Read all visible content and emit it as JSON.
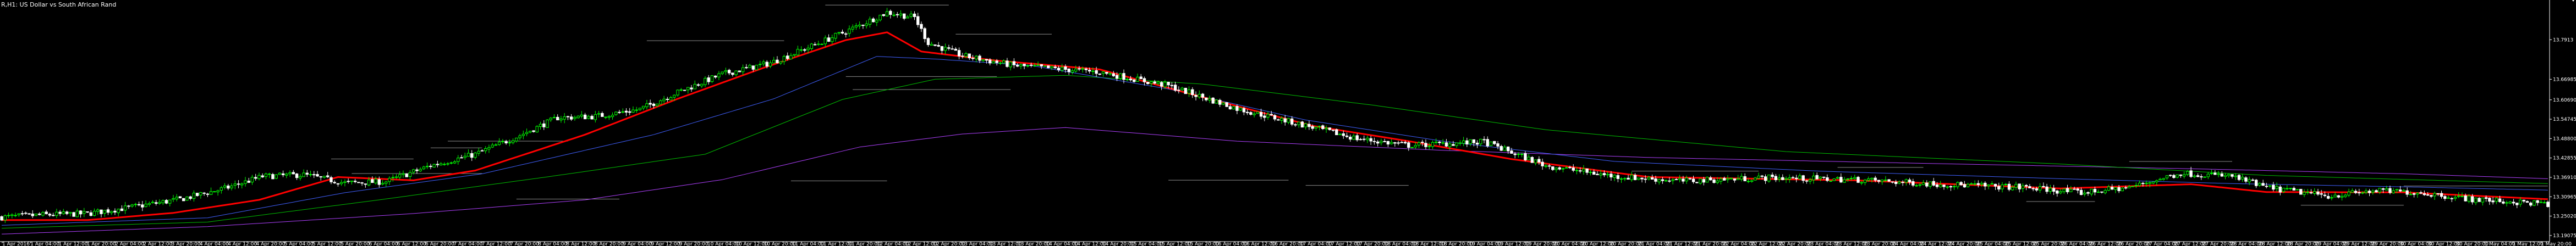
{
  "window": {
    "title": "R,H1:  US Dollar vs South African Rand"
  },
  "colors": {
    "background": "#000000",
    "foreground": "#ffffff",
    "bull_candle": "#00ff00",
    "bear_candle": "#ffffff",
    "ma_fast": "#ff0000",
    "ma_blue": "#4060ff",
    "ma_green": "#00c000",
    "ma_purple": "#b040ff",
    "sr_line": "#8c8c8c"
  },
  "icons": {
    "resize_grip": "resize-grip-icon"
  },
  "chart_data": {
    "type": "candlestick",
    "title": "R,H1:  US Dollar vs South African Rand",
    "ylim": [
      13.172,
      13.913
    ],
    "y_ticks": [
      "13.7913",
      "13.66985",
      "13.60690",
      "13.54745",
      "13.48800",
      "13.42855",
      "13.36910",
      "13.30965",
      "13.25020",
      "13.19075"
    ],
    "y_tick_values": [
      13.7913,
      13.66985,
      13.6069,
      13.54745,
      13.488,
      13.42855,
      13.3691,
      13.30965,
      13.2502,
      13.19075
    ],
    "x_ticks": [
      "1 Apr 2016",
      "1 Apr 04:00",
      "1 Apr 12:00",
      "1 Apr 20:00",
      "2 Apr 04:00",
      "2 Apr 12:00",
      "3 Apr 20:00",
      "4 Apr 04:00",
      "4 Apr 12:00",
      "4 Apr 20:00",
      "5 Apr 04:00",
      "5 Apr 12:00",
      "5 Apr 20:00",
      "6 Apr 04:00",
      "6 Apr 12:00",
      "6 Apr 20:00",
      "7 Apr 04:00",
      "7 Apr 12:00",
      "7 Apr 20:00",
      "8 Apr 04:00",
      "8 Apr 12:00",
      "8 Apr 20:00",
      "9 Apr 04:00",
      "9 Apr 12:00",
      "9 Apr 20:00",
      "10 Apr 04:00",
      "10 Apr 12:00",
      "10 Apr 20:00",
      "11 Apr 04:00",
      "11 Apr 12:00",
      "11 Apr 20:00",
      "12 Apr 04:00",
      "12 Apr 12:00",
      "12 Apr 20:00",
      "13 Apr 04:00",
      "13 Apr 12:00",
      "13 Apr 20:00",
      "14 Apr 04:00",
      "14 Apr 12:00",
      "14 Apr 20:00",
      "15 Apr 04:00",
      "15 Apr 12:00",
      "15 Apr 20:00",
      "16 Apr 04:00",
      "16 Apr 12:00",
      "16 Apr 20:00",
      "17 Apr 04:00",
      "17 Apr 12:00",
      "17 Apr 20:00",
      "18 Apr 04:00",
      "18 Apr 12:00",
      "18 Apr 20:00",
      "19 Apr 04:00",
      "19 Apr 12:00",
      "19 Apr 20:00",
      "20 Apr 04:00",
      "20 Apr 12:00",
      "20 Apr 20:00",
      "21 Apr 04:00",
      "21 Apr 12:00",
      "21 Apr 20:00",
      "22 Apr 04:00",
      "22 Apr 12:00",
      "22 Apr 20:00",
      "23 Apr 04:00",
      "23 Apr 12:00",
      "23 Apr 20:00",
      "24 Apr 04:00",
      "24 Apr 12:00",
      "24 Apr 20:00",
      "25 Apr 04:00",
      "25 Apr 12:00",
      "25 Apr 20:00",
      "26 Apr 04:00",
      "26 Apr 12:00",
      "26 Apr 20:00",
      "27 Apr 04:00",
      "27 Apr 12:00",
      "27 Apr 20:00",
      "28 Apr 04:00",
      "28 Apr 12:00",
      "28 Apr 20:00",
      "29 Apr 04:00",
      "29 Apr 12:00",
      "29 Apr 20:00",
      "30 Apr 04:00",
      "30 Apr 12:00",
      "30 Apr 20:00",
      "1 May 04:00",
      "1 May 12:00",
      "1 May 20:00"
    ],
    "close_anchors": [
      [
        0,
        13.247
      ],
      [
        12,
        13.254
      ],
      [
        25,
        13.258
      ],
      [
        38,
        13.278
      ],
      [
        52,
        13.302
      ],
      [
        65,
        13.335
      ],
      [
        76,
        13.372
      ],
      [
        88,
        13.377
      ],
      [
        100,
        13.352
      ],
      [
        112,
        13.356
      ],
      [
        125,
        13.405
      ],
      [
        138,
        13.44
      ],
      [
        150,
        13.493
      ],
      [
        162,
        13.552
      ],
      [
        173,
        13.556
      ],
      [
        186,
        13.578
      ],
      [
        197,
        13.63
      ],
      [
        210,
        13.686
      ],
      [
        224,
        13.72
      ],
      [
        238,
        13.78
      ],
      [
        250,
        13.835
      ],
      [
        258,
        13.875
      ],
      [
        266,
        13.86
      ],
      [
        270,
        13.782
      ],
      [
        280,
        13.742
      ],
      [
        295,
        13.712
      ],
      [
        320,
        13.692
      ],
      [
        340,
        13.65
      ],
      [
        360,
        13.58
      ],
      [
        380,
        13.528
      ],
      [
        395,
        13.488
      ],
      [
        410,
        13.467
      ],
      [
        432,
        13.478
      ],
      [
        450,
        13.405
      ],
      [
        470,
        13.372
      ],
      [
        490,
        13.358
      ],
      [
        515,
        13.368
      ],
      [
        540,
        13.362
      ],
      [
        565,
        13.348
      ],
      [
        590,
        13.338
      ],
      [
        606,
        13.322
      ],
      [
        620,
        13.338
      ],
      [
        635,
        13.382
      ],
      [
        650,
        13.372
      ],
      [
        660,
        13.338
      ],
      [
        678,
        13.312
      ],
      [
        692,
        13.328
      ],
      [
        705,
        13.322
      ],
      [
        720,
        13.302
      ],
      [
        734,
        13.292
      ],
      [
        742,
        13.288
      ]
    ],
    "series": [
      {
        "name": "",
        "color_key": "ma_fast",
        "anchors": [
          [
            0,
            13.238
          ],
          [
            25,
            13.238
          ],
          [
            50,
            13.26
          ],
          [
            75,
            13.3
          ],
          [
            98,
            13.37
          ],
          [
            120,
            13.36
          ],
          [
            138,
            13.39
          ],
          [
            170,
            13.5
          ],
          [
            197,
            13.61
          ],
          [
            222,
            13.705
          ],
          [
            246,
            13.79
          ],
          [
            258,
            13.814
          ],
          [
            268,
            13.755
          ],
          [
            290,
            13.727
          ],
          [
            320,
            13.7
          ],
          [
            350,
            13.615
          ],
          [
            382,
            13.527
          ],
          [
            410,
            13.48
          ],
          [
            440,
            13.425
          ],
          [
            480,
            13.37
          ],
          [
            540,
            13.36
          ],
          [
            600,
            13.335
          ],
          [
            638,
            13.348
          ],
          [
            660,
            13.324
          ],
          [
            700,
            13.323
          ],
          [
            742,
            13.302
          ]
        ]
      },
      {
        "name": "",
        "color_key": "ma_blue",
        "anchors": [
          [
            0,
            13.222
          ],
          [
            60,
            13.245
          ],
          [
            100,
            13.322
          ],
          [
            140,
            13.38
          ],
          [
            190,
            13.5
          ],
          [
            225,
            13.61
          ],
          [
            255,
            13.74
          ],
          [
            272,
            13.732
          ],
          [
            300,
            13.712
          ],
          [
            340,
            13.64
          ],
          [
            380,
            13.545
          ],
          [
            420,
            13.48
          ],
          [
            470,
            13.418
          ],
          [
            530,
            13.388
          ],
          [
            600,
            13.365
          ],
          [
            650,
            13.35
          ],
          [
            700,
            13.34
          ],
          [
            742,
            13.33
          ]
        ]
      },
      {
        "name": "",
        "color_key": "ma_green",
        "anchors": [
          [
            0,
            13.213
          ],
          [
            60,
            13.232
          ],
          [
            110,
            13.3
          ],
          [
            160,
            13.372
          ],
          [
            205,
            13.44
          ],
          [
            245,
            13.608
          ],
          [
            272,
            13.67
          ],
          [
            310,
            13.682
          ],
          [
            350,
            13.655
          ],
          [
            400,
            13.59
          ],
          [
            450,
            13.515
          ],
          [
            520,
            13.448
          ],
          [
            600,
            13.41
          ],
          [
            660,
            13.375
          ],
          [
            742,
            13.35
          ]
        ]
      },
      {
        "name": "",
        "color_key": "ma_purple",
        "anchors": [
          [
            0,
            13.195
          ],
          [
            60,
            13.218
          ],
          [
            120,
            13.258
          ],
          [
            170,
            13.3
          ],
          [
            210,
            13.362
          ],
          [
            250,
            13.462
          ],
          [
            280,
            13.502
          ],
          [
            310,
            13.522
          ],
          [
            360,
            13.48
          ],
          [
            420,
            13.452
          ],
          [
            480,
            13.43
          ],
          [
            560,
            13.412
          ],
          [
            640,
            13.395
          ],
          [
            700,
            13.38
          ],
          [
            742,
            13.365
          ]
        ]
      }
    ],
    "sr_levels": [
      {
        "y": 13.8975,
        "from": 240,
        "to": 276
      },
      {
        "y": 13.7882,
        "from": 188,
        "to": 228
      },
      {
        "y": 13.8082,
        "from": 278,
        "to": 306
      },
      {
        "y": 13.6782,
        "from": 246,
        "to": 290
      },
      {
        "y": 13.6382,
        "from": 248,
        "to": 294
      },
      {
        "y": 13.4595,
        "from": 125,
        "to": 140
      },
      {
        "y": 13.4802,
        "from": 130,
        "to": 165
      },
      {
        "y": 13.4255,
        "from": 96,
        "to": 120
      },
      {
        "y": 13.3808,
        "from": 102,
        "to": 140
      },
      {
        "y": 13.3582,
        "from": 230,
        "to": 258
      },
      {
        "y": 13.3445,
        "from": 380,
        "to": 410
      },
      {
        "y": 13.3882,
        "from": 475,
        "to": 512
      },
      {
        "y": 13.3995,
        "from": 535,
        "to": 560
      },
      {
        "y": 13.4178,
        "from": 620,
        "to": 650
      },
      {
        "y": 13.3025,
        "from": 150,
        "to": 180
      },
      {
        "y": 13.295,
        "from": 590,
        "to": 610
      },
      {
        "y": 13.2835,
        "from": 670,
        "to": 700
      },
      {
        "y": 13.3605,
        "from": 340,
        "to": 375
      },
      {
        "y": 13.3425,
        "from": 700,
        "to": 742
      }
    ]
  }
}
